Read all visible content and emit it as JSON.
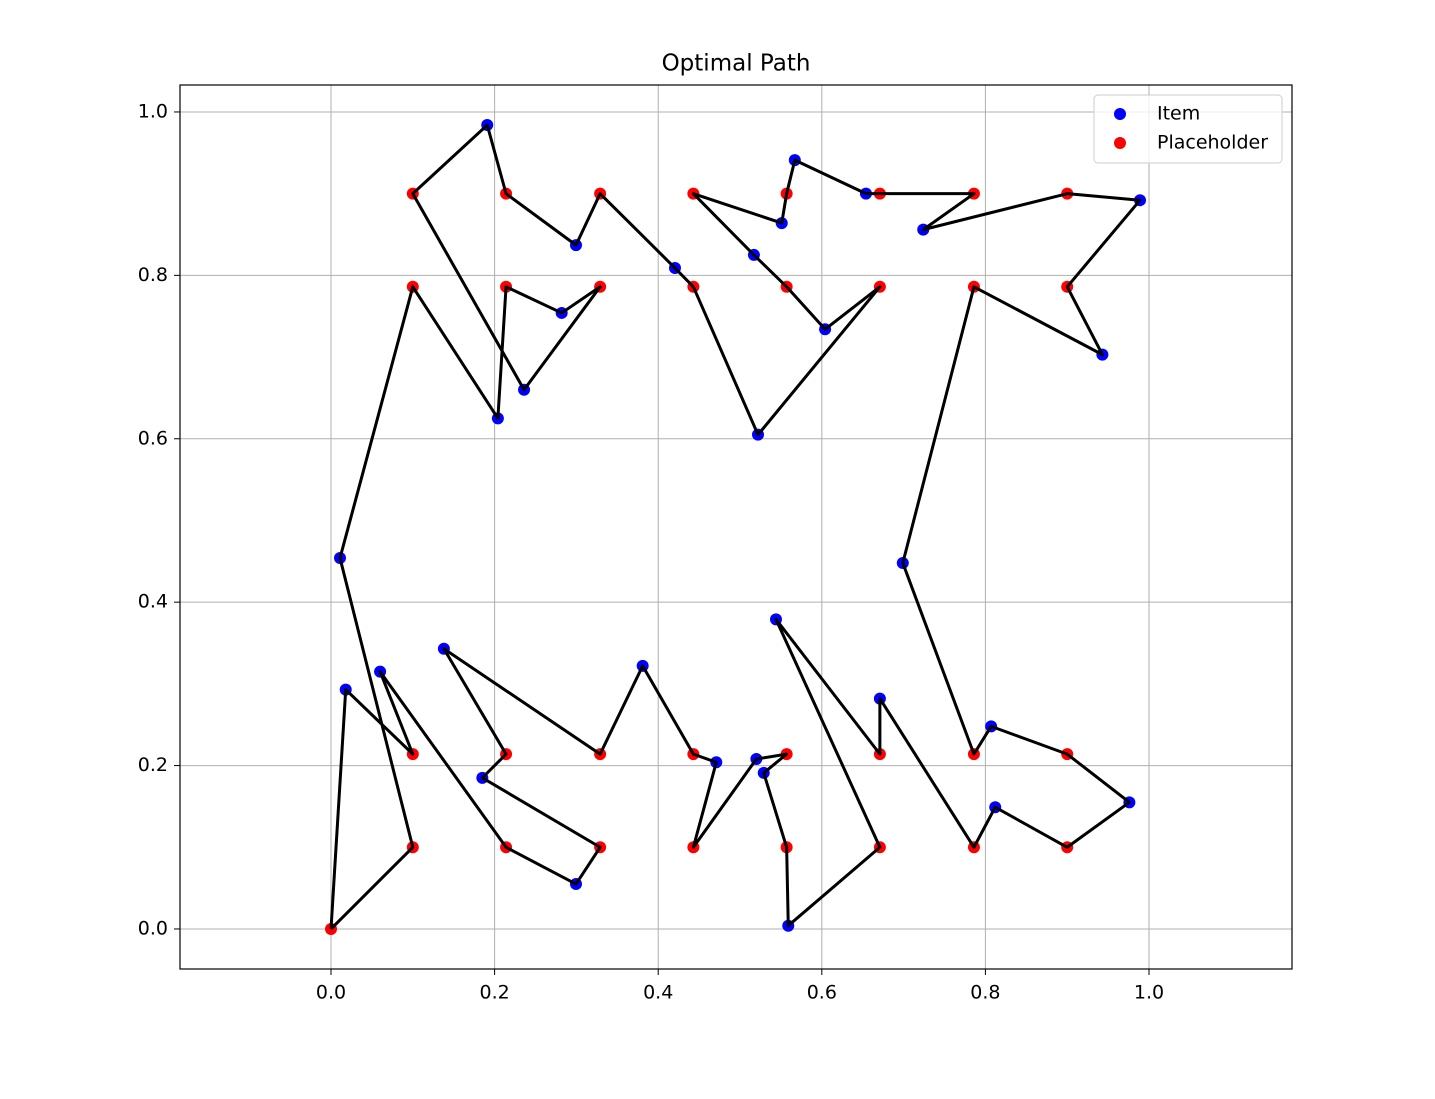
{
  "chart_data": {
    "type": "scatter",
    "title": "Optimal Path",
    "series": [
      {
        "name": "Item",
        "color": "#0000ff",
        "x": [
          0.191,
          0.2995,
          0.4205,
          0.282,
          0.236,
          0.204,
          0.517,
          0.551,
          0.567,
          0.654,
          0.724,
          0.989,
          0.943,
          0.604,
          0.522,
          0.011,
          0.699,
          0.018,
          0.06,
          0.138,
          0.381,
          0.185,
          0.2995,
          0.471,
          0.52,
          0.529,
          0.559,
          0.544,
          0.671,
          0.807,
          0.976,
          0.812
        ],
        "y": [
          0.984,
          0.837,
          0.809,
          0.754,
          0.66,
          0.625,
          0.825,
          0.864,
          0.941,
          0.9,
          0.856,
          0.892,
          0.703,
          0.734,
          0.605,
          0.454,
          0.448,
          0.293,
          0.315,
          0.343,
          0.322,
          0.185,
          0.055,
          0.204,
          0.208,
          0.191,
          0.004,
          0.379,
          0.282,
          0.248,
          0.155,
          0.149
        ]
      },
      {
        "name": "Placeholder",
        "color": "#ff0000",
        "x": [
          0,
          0.1,
          0.214,
          0.329,
          0.443,
          0.557,
          0.671,
          0.786,
          0.9,
          0.1,
          0.214,
          0.329,
          0.443,
          0.557,
          0.671,
          0.786,
          0.9,
          0.1,
          0.214,
          0.329,
          0.443,
          0.557,
          0.671,
          0.786,
          0.9,
          0.1,
          0.214,
          0.329,
          0.443,
          0.557,
          0.671,
          0.786,
          0.9
        ],
        "y": [
          0,
          0.9,
          0.9,
          0.9,
          0.9,
          0.9,
          0.9,
          0.9,
          0.9,
          0.786,
          0.786,
          0.786,
          0.786,
          0.786,
          0.786,
          0.786,
          0.786,
          0.214,
          0.214,
          0.214,
          0.214,
          0.214,
          0.214,
          0.214,
          0.214,
          0.1,
          0.1,
          0.1,
          0.1,
          0.1,
          0.1,
          0.1,
          0.1
        ]
      }
    ],
    "path": {
      "color": "#000000",
      "x": [
        0,
        0.1,
        0.011,
        0.1,
        0.204,
        0.214,
        0.282,
        0.329,
        0.236,
        0.1,
        0.191,
        0.214,
        0.2995,
        0.329,
        0.4205,
        0.443,
        0.522,
        0.671,
        0.604,
        0.557,
        0.517,
        0.443,
        0.551,
        0.557,
        0.567,
        0.654,
        0.671,
        0.786,
        0.724,
        0.9,
        0.989,
        0.9,
        0.943,
        0.786,
        0.699,
        0.786,
        0.807,
        0.9,
        0.976,
        0.9,
        0.812,
        0.786,
        0.671,
        0.671,
        0.544,
        0.671,
        0.559,
        0.557,
        0.529,
        0.557,
        0.52,
        0.443,
        0.471,
        0.443,
        0.381,
        0.329,
        0.138,
        0.214,
        0.185,
        0.329,
        0.2995,
        0.214,
        0.06,
        0.1,
        0.018,
        0
      ],
      "y": [
        0,
        0.1,
        0.454,
        0.786,
        0.625,
        0.786,
        0.754,
        0.786,
        0.66,
        0.9,
        0.984,
        0.9,
        0.837,
        0.9,
        0.809,
        0.786,
        0.605,
        0.786,
        0.734,
        0.786,
        0.825,
        0.9,
        0.864,
        0.9,
        0.941,
        0.9,
        0.9,
        0.9,
        0.856,
        0.9,
        0.892,
        0.786,
        0.703,
        0.786,
        0.448,
        0.214,
        0.248,
        0.214,
        0.155,
        0.1,
        0.149,
        0.1,
        0.282,
        0.214,
        0.379,
        0.1,
        0.004,
        0.1,
        0.191,
        0.214,
        0.208,
        0.1,
        0.204,
        0.214,
        0.322,
        0.214,
        0.343,
        0.214,
        0.185,
        0.1,
        0.055,
        0.1,
        0.315,
        0.214,
        0.293,
        0
      ]
    },
    "xlim": [
      -0.1846,
      1.1748
    ],
    "ylim": [
      -0.049,
      1.033
    ],
    "xticks": [
      {
        "value": 0,
        "label": "0.0"
      },
      0.2,
      0.4,
      0.6,
      0.8,
      {
        "value": 1,
        "label": "1.0"
      }
    ],
    "yticks": [
      {
        "value": 0,
        "label": "0.0"
      },
      0.2,
      0.4,
      0.6,
      0.8,
      {
        "value": 1,
        "label": "1.0"
      }
    ],
    "grid": true,
    "legend": "upper right"
  }
}
